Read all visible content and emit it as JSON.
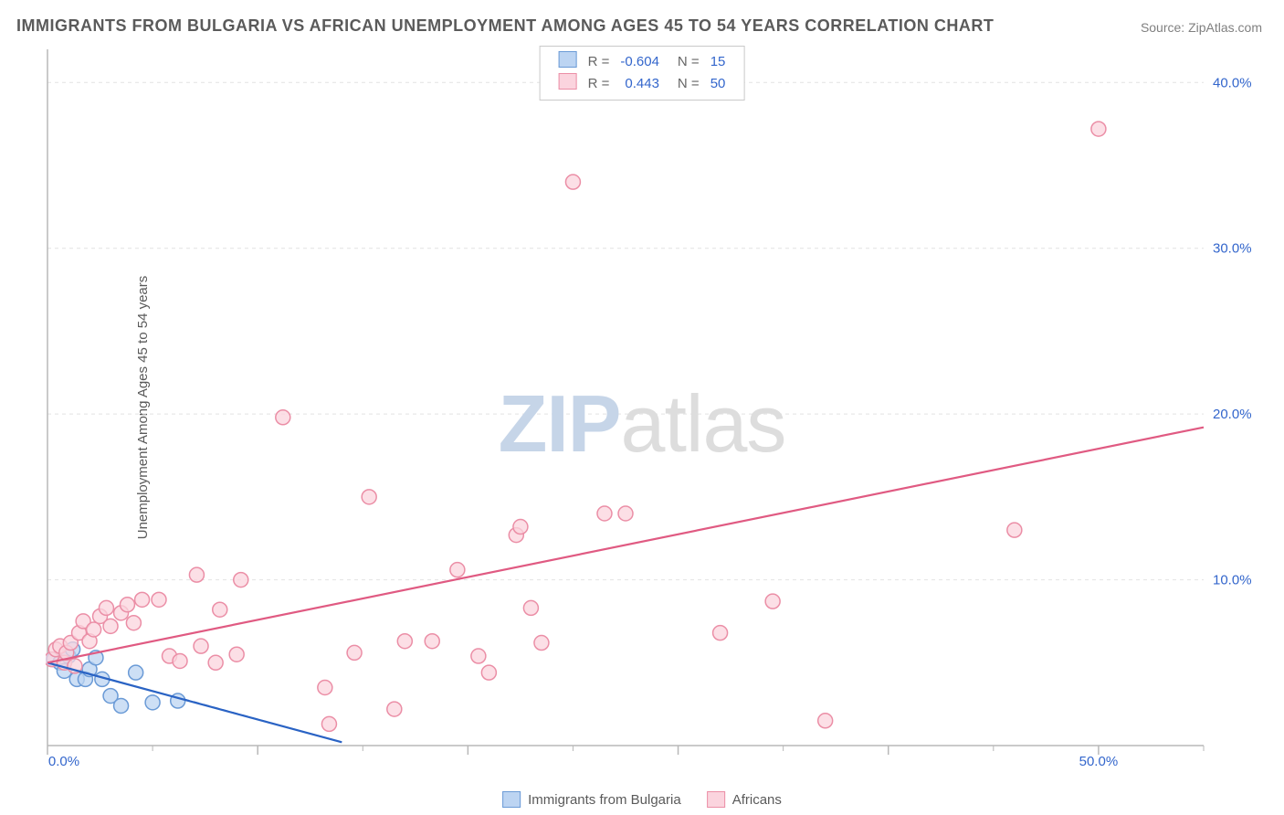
{
  "title": "IMMIGRANTS FROM BULGARIA VS AFRICAN UNEMPLOYMENT AMONG AGES 45 TO 54 YEARS CORRELATION CHART",
  "source_prefix": "Source: ",
  "source": "ZipAtlas.com",
  "ylabel": "Unemployment Among Ages 45 to 54 years",
  "watermark": {
    "a": "ZIP",
    "b": "atlas"
  },
  "chart": {
    "type": "scatter",
    "background_color": "#ffffff",
    "grid_color": "#e2e2e2",
    "axis_color": "#b8b8b8",
    "tick_label_color": "#3366cc",
    "xlim": [
      0,
      55
    ],
    "ylim": [
      0,
      42
    ],
    "xticks_major": [
      0,
      10,
      20,
      30,
      40,
      50
    ],
    "xticks_minor": [
      5,
      15,
      25,
      35,
      45,
      55
    ],
    "xtick_labels": {
      "0": "0.0%",
      "50": "50.0%"
    },
    "yticks": [
      10,
      20,
      30,
      40
    ],
    "ytick_labels": {
      "10": "10.0%",
      "20": "20.0%",
      "30": "30.0%",
      "40": "40.0%"
    },
    "marker_radius": 8,
    "marker_stroke_width": 1.5,
    "line_width": 2.2,
    "series": [
      {
        "key": "bulgaria",
        "label": "Immigrants from Bulgaria",
        "color_fill": "#bcd4f2",
        "color_stroke": "#6a9ad6",
        "line_color": "#2a63c4",
        "r": -0.604,
        "n": 15,
        "regression": {
          "x1": 0,
          "y1": 5.0,
          "x2": 14,
          "y2": 0.2,
          "dashed_extend_to_x": 14
        },
        "dashed_extension": {
          "x1": 6.5,
          "y1": 2.8,
          "x2": 14,
          "y2": 0.2
        },
        "points": [
          [
            0.3,
            5.2
          ],
          [
            0.6,
            5.0
          ],
          [
            0.8,
            4.5
          ],
          [
            1.0,
            5.4
          ],
          [
            1.2,
            5.8
          ],
          [
            1.4,
            4.0
          ],
          [
            1.8,
            4.0
          ],
          [
            2.0,
            4.6
          ],
          [
            2.3,
            5.3
          ],
          [
            2.6,
            4.0
          ],
          [
            3.0,
            3.0
          ],
          [
            3.5,
            2.4
          ],
          [
            4.2,
            4.4
          ],
          [
            5.0,
            2.6
          ],
          [
            6.2,
            2.7
          ]
        ]
      },
      {
        "key": "africans",
        "label": "Africans",
        "color_fill": "#fbd4de",
        "color_stroke": "#eb8ea6",
        "line_color": "#e05a82",
        "r": 0.443,
        "n": 50,
        "regression": {
          "x1": 0,
          "y1": 5.0,
          "x2": 55,
          "y2": 19.2
        },
        "points": [
          [
            0.2,
            5.2
          ],
          [
            0.4,
            5.8
          ],
          [
            0.6,
            6.0
          ],
          [
            0.8,
            5.0
          ],
          [
            0.9,
            5.6
          ],
          [
            1.1,
            6.2
          ],
          [
            1.3,
            4.8
          ],
          [
            1.5,
            6.8
          ],
          [
            1.7,
            7.5
          ],
          [
            2.0,
            6.3
          ],
          [
            2.2,
            7.0
          ],
          [
            2.5,
            7.8
          ],
          [
            2.8,
            8.3
          ],
          [
            3.0,
            7.2
          ],
          [
            3.5,
            8.0
          ],
          [
            3.8,
            8.5
          ],
          [
            4.1,
            7.4
          ],
          [
            4.5,
            8.8
          ],
          [
            5.3,
            8.8
          ],
          [
            5.8,
            5.4
          ],
          [
            6.3,
            5.1
          ],
          [
            7.1,
            10.3
          ],
          [
            7.3,
            6.0
          ],
          [
            8.0,
            5.0
          ],
          [
            8.2,
            8.2
          ],
          [
            9.0,
            5.5
          ],
          [
            9.2,
            10.0
          ],
          [
            11.2,
            19.8
          ],
          [
            13.2,
            3.5
          ],
          [
            13.4,
            1.3
          ],
          [
            14.6,
            5.6
          ],
          [
            15.3,
            15.0
          ],
          [
            16.5,
            2.2
          ],
          [
            17.0,
            6.3
          ],
          [
            18.3,
            6.3
          ],
          [
            19.5,
            10.6
          ],
          [
            20.5,
            5.4
          ],
          [
            21.0,
            4.4
          ],
          [
            22.3,
            12.7
          ],
          [
            22.5,
            13.2
          ],
          [
            23.0,
            8.3
          ],
          [
            23.5,
            6.2
          ],
          [
            25.0,
            34.0
          ],
          [
            26.5,
            14.0
          ],
          [
            27.5,
            14.0
          ],
          [
            32.0,
            6.8
          ],
          [
            34.5,
            8.7
          ],
          [
            37.0,
            1.5
          ],
          [
            46.0,
            13.0
          ],
          [
            50.0,
            37.2
          ]
        ]
      }
    ]
  },
  "legend_top_labels": {
    "R": "R =",
    "N": "N ="
  },
  "legend_bottom": [
    {
      "key": "bulgaria",
      "label": "Immigrants from Bulgaria"
    },
    {
      "key": "africans",
      "label": "Africans"
    }
  ]
}
